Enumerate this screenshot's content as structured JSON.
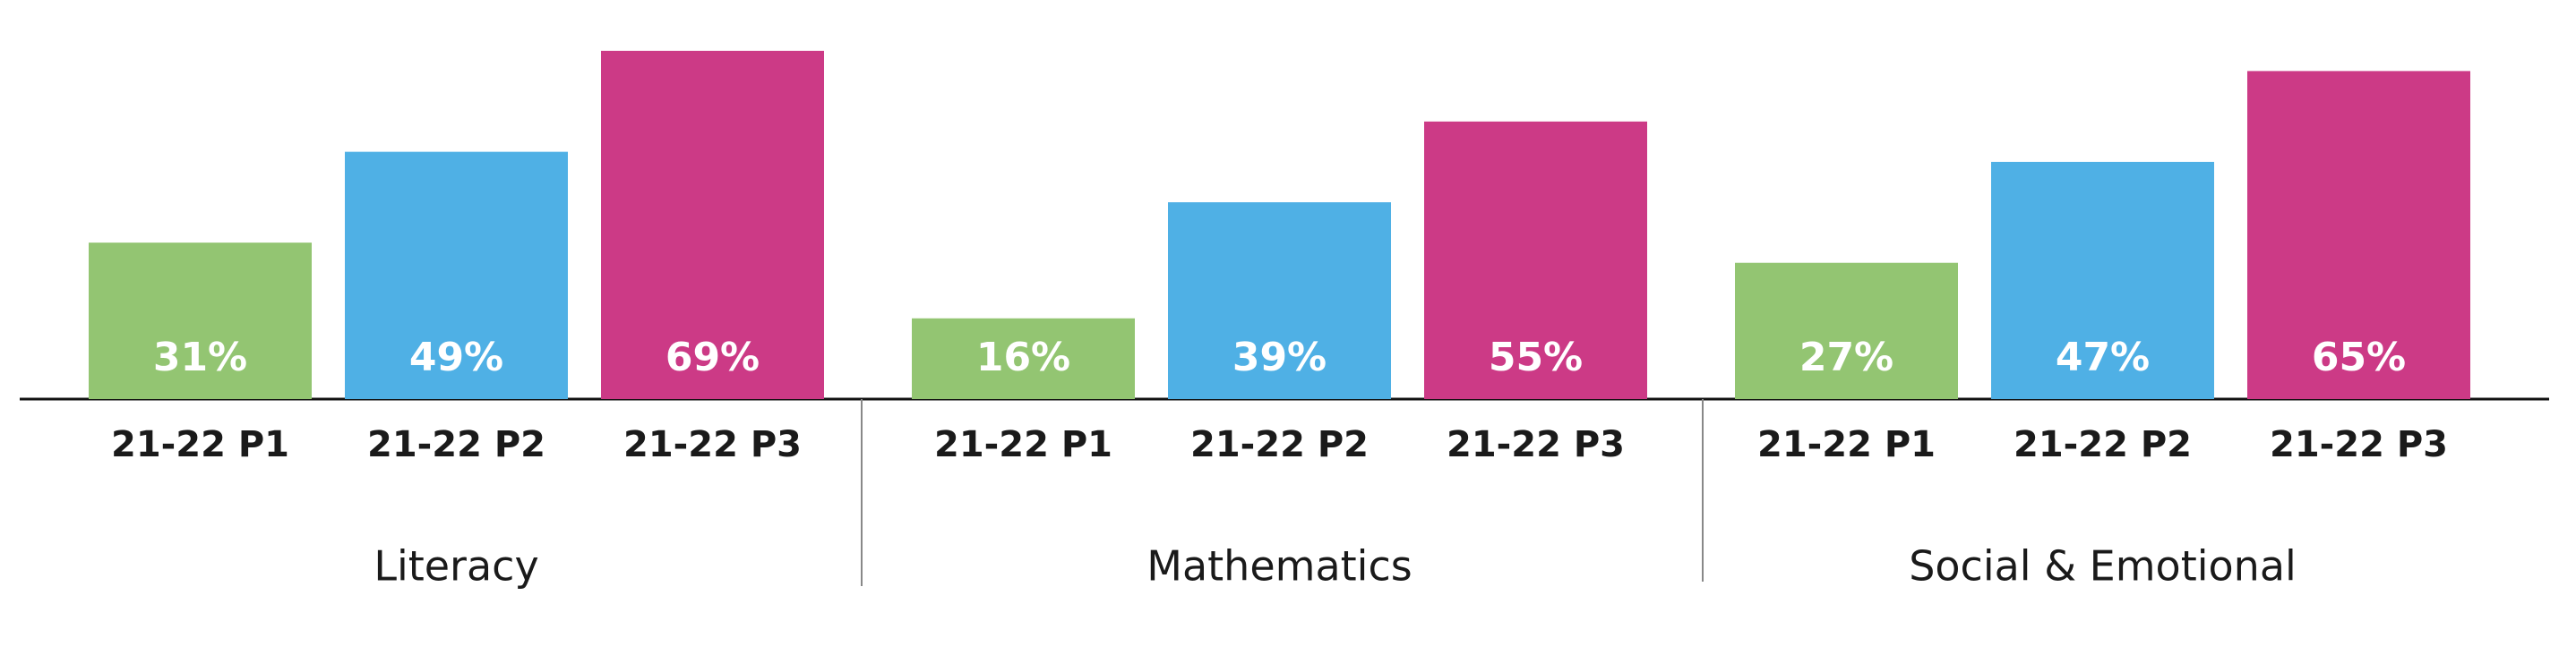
{
  "chart_data": {
    "type": "bar",
    "categories": [
      "Literacy",
      "Mathematics",
      "Social & Emotional"
    ],
    "series": [
      {
        "name": "21-22 P1",
        "color": "#93c572",
        "values": [
          31,
          16,
          27
        ],
        "value_labels": [
          "31%",
          "16%",
          "27%"
        ]
      },
      {
        "name": "21-22 P2",
        "color": "#4fb0e5",
        "values": [
          49,
          39,
          47
        ],
        "value_labels": [
          "49%",
          "39%",
          "47%"
        ]
      },
      {
        "name": "21-22 P3",
        "color": "#cc3a86",
        "values": [
          69,
          55,
          65
        ],
        "value_labels": [
          "69%",
          "55%",
          "65%"
        ]
      }
    ]
  }
}
